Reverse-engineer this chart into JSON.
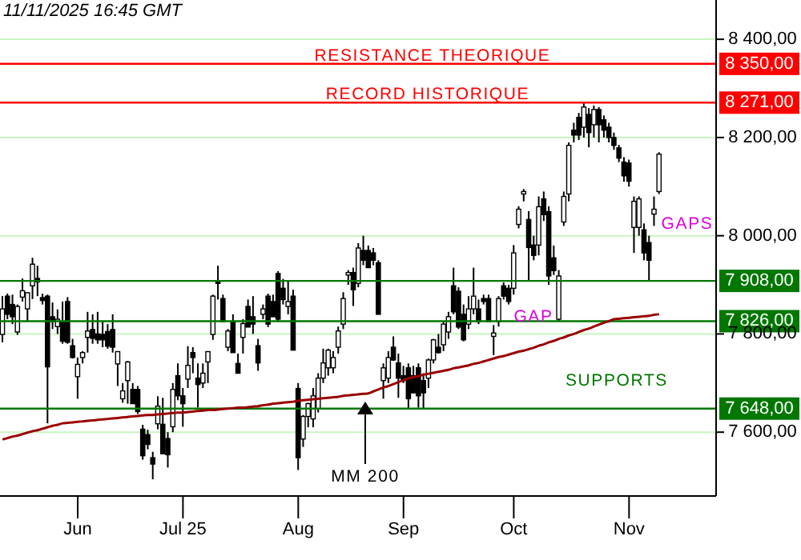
{
  "chart_data": {
    "type": "candlestick",
    "title": "11/11/2025  16:45 GMT",
    "categories": [
      null,
      null,
      null,
      null,
      null,
      null,
      null,
      null,
      null,
      null,
      null,
      null,
      null,
      null,
      null,
      "Jun",
      null,
      null,
      null,
      null,
      null,
      null,
      null,
      null,
      null,
      null,
      null,
      null,
      null,
      null,
      null,
      null,
      null,
      null,
      null,
      null,
      "Jul 25",
      null,
      null,
      null,
      null,
      null,
      null,
      null,
      null,
      null,
      null,
      null,
      null,
      null,
      null,
      null,
      null,
      null,
      null,
      null,
      null,
      null,
      null,
      "Aug",
      null,
      null,
      null,
      null,
      null,
      null,
      null,
      null,
      null,
      null,
      null,
      null,
      null,
      null,
      null,
      null,
      null,
      null,
      null,
      null,
      "Sep",
      null,
      null,
      null,
      null,
      null,
      null,
      null,
      null,
      null,
      null,
      null,
      null,
      null,
      null,
      null,
      null,
      null,
      null,
      null,
      null,
      null,
      "Oct",
      null,
      null,
      null,
      null,
      null,
      null,
      null,
      null,
      null,
      null,
      null,
      null,
      null,
      null,
      null,
      null,
      null,
      null,
      null,
      null,
      null,
      null,
      "Nov",
      null,
      null,
      null,
      null,
      null,
      null
    ],
    "ohlc": [
      [
        7799,
        7877,
        7783,
        7851
      ],
      [
        7877,
        7882,
        7830,
        7840
      ],
      [
        7860,
        7880,
        7820,
        7835
      ],
      [
        7804,
        7860,
        7798,
        7856
      ],
      [
        7875,
        7913,
        7866,
        7888
      ],
      [
        7851,
        7885,
        7825,
        7884
      ],
      [
        7898,
        7955,
        7871,
        7942
      ],
      [
        7913,
        7939,
        7877,
        7906
      ],
      [
        7874,
        7882,
        7860,
        7868
      ],
      [
        7877,
        7880,
        7618,
        7733
      ],
      [
        7835,
        7864,
        7810,
        7825
      ],
      [
        7815,
        7850,
        7800,
        7830
      ],
      [
        7825,
        7866,
        7780,
        7785
      ],
      [
        7866,
        7875,
        7780,
        7783
      ],
      [
        7776,
        7790,
        7750,
        7752
      ],
      [
        7713,
        7752,
        7668,
        7738
      ],
      [
        7752,
        7765,
        7740,
        7762
      ],
      [
        7793,
        7845,
        7762,
        7806
      ],
      [
        7809,
        7840,
        7780,
        7791
      ],
      [
        7800,
        7845,
        7780,
        7788
      ],
      [
        7799,
        7825,
        7773,
        7788
      ],
      [
        7805,
        7820,
        7770,
        7775
      ],
      [
        7809,
        7840,
        7762,
        7773
      ],
      [
        7739,
        7765,
        7694,
        7764
      ],
      [
        7668,
        7700,
        7660,
        7684
      ],
      [
        7705,
        7745,
        7658,
        7743
      ],
      [
        7687,
        7700,
        7658,
        7658
      ],
      [
        7687,
        7694,
        7637,
        7642
      ],
      [
        7606,
        7615,
        7544,
        7552
      ],
      [
        7595,
        7605,
        7565,
        7575
      ],
      [
        7548,
        7560,
        7504,
        7535
      ],
      [
        7617,
        7673,
        7606,
        7653
      ],
      [
        7616,
        7670,
        7556,
        7556
      ],
      [
        7587,
        7600,
        7528,
        7554
      ],
      [
        7611,
        7700,
        7600,
        7687
      ],
      [
        7715,
        7740,
        7665,
        7674
      ],
      [
        7674,
        7690,
        7611,
        7658
      ],
      [
        7708,
        7775,
        7690,
        7736
      ],
      [
        7762,
        7773,
        7720,
        7752
      ],
      [
        7710,
        7740,
        7650,
        7697
      ],
      [
        7700,
        7740,
        7690,
        7720
      ],
      [
        7743,
        7765,
        7700,
        7764
      ],
      [
        7799,
        7880,
        7788,
        7877
      ],
      [
        7908,
        7939,
        7870,
        7903
      ],
      [
        7872,
        7880,
        7825,
        7825
      ],
      [
        7773,
        7810,
        7765,
        7806
      ],
      [
        7825,
        7840,
        7762,
        7762
      ],
      [
        7740,
        7760,
        7720,
        7720
      ],
      [
        7793,
        7830,
        7760,
        7821
      ],
      [
        7856,
        7870,
        7814,
        7814
      ],
      [
        7835,
        7877,
        7800,
        7820
      ],
      [
        7776,
        7790,
        7725,
        7741
      ],
      [
        7840,
        7860,
        7830,
        7851
      ],
      [
        7877,
        7882,
        7814,
        7820
      ],
      [
        7866,
        7880,
        7835,
        7835
      ],
      [
        7923,
        7928,
        7825,
        7830
      ],
      [
        7893,
        7912,
        7860,
        7870
      ],
      [
        7856,
        7908,
        7840,
        7866
      ],
      [
        7877,
        7890,
        7767,
        7767
      ],
      [
        7689,
        7700,
        7523,
        7548
      ],
      [
        7586,
        7635,
        7570,
        7632
      ],
      [
        7632,
        7660,
        7610,
        7658
      ],
      [
        7627,
        7690,
        7610,
        7674
      ],
      [
        7648,
        7720,
        7640,
        7710
      ],
      [
        7710,
        7770,
        7700,
        7741
      ],
      [
        7731,
        7770,
        7715,
        7767
      ],
      [
        7731,
        7765,
        7720,
        7752
      ],
      [
        7773,
        7815,
        7760,
        7806
      ],
      [
        7820,
        7885,
        7810,
        7872
      ],
      [
        7920,
        7930,
        7900,
        7925
      ],
      [
        7925,
        7935,
        7857,
        7890
      ],
      [
        7903,
        7985,
        7895,
        7975
      ],
      [
        7970,
        8000,
        7940,
        7950
      ],
      [
        7970,
        7980,
        7935,
        7935
      ],
      [
        7965,
        7975,
        7940,
        7950
      ],
      [
        7945,
        7950,
        7840,
        7840
      ],
      [
        7705,
        7740,
        7668,
        7731
      ],
      [
        7710,
        7765,
        7700,
        7752
      ],
      [
        7773,
        7795,
        7745,
        7747
      ],
      [
        7741,
        7760,
        7670,
        7710
      ],
      [
        7715,
        7735,
        7700,
        7705
      ],
      [
        7731,
        7740,
        7648,
        7668
      ],
      [
        7715,
        7735,
        7680,
        7680
      ],
      [
        7731,
        7740,
        7650,
        7674
      ],
      [
        7705,
        7720,
        7648,
        7680
      ],
      [
        7710,
        7750,
        7690,
        7747
      ],
      [
        7747,
        7790,
        7740,
        7788
      ],
      [
        7773,
        7800,
        7760,
        7762
      ],
      [
        7778,
        7825,
        7765,
        7820
      ],
      [
        7804,
        7845,
        7790,
        7835
      ],
      [
        7898,
        7935,
        7840,
        7845
      ],
      [
        7887,
        7895,
        7810,
        7814
      ],
      [
        7840,
        7860,
        7785,
        7788
      ],
      [
        7820,
        7877,
        7810,
        7851
      ],
      [
        7851,
        7935,
        7840,
        7877
      ],
      [
        7851,
        7870,
        7820,
        7825
      ],
      [
        7872,
        7880,
        7860,
        7866
      ],
      [
        7872,
        7880,
        7825,
        7825
      ],
      [
        7795,
        7818,
        7757,
        7802
      ],
      [
        7825,
        7877,
        7815,
        7872
      ],
      [
        7898,
        7905,
        7870,
        7877
      ],
      [
        7893,
        7900,
        7860,
        7866
      ],
      [
        7893,
        7981,
        7880,
        7965
      ],
      [
        8023,
        8060,
        8015,
        8054
      ],
      [
        8085,
        8095,
        8070,
        8090
      ],
      [
        8033,
        8050,
        7908,
        7976
      ],
      [
        7981,
        8000,
        7950,
        7960
      ],
      [
        7981,
        8080,
        7960,
        8059
      ],
      [
        8075,
        8090,
        8030,
        8043
      ],
      [
        8049,
        8060,
        7900,
        7918
      ],
      [
        7955,
        7980,
        7920,
        7929
      ],
      [
        7830,
        7930,
        7826,
        7918
      ],
      [
        8028,
        8090,
        8020,
        8080
      ],
      [
        8085,
        8190,
        8070,
        8184
      ],
      [
        8215,
        8230,
        8190,
        8205
      ],
      [
        8241,
        8250,
        8195,
        8205
      ],
      [
        8221,
        8271,
        8200,
        8262
      ],
      [
        8247,
        8260,
        8180,
        8210
      ],
      [
        8226,
        8265,
        8200,
        8257
      ],
      [
        8257,
        8262,
        8190,
        8226
      ],
      [
        8236,
        8245,
        8200,
        8215
      ],
      [
        8221,
        8230,
        8190,
        8200
      ],
      [
        8200,
        8210,
        8175,
        8184
      ],
      [
        8179,
        8185,
        8150,
        8158
      ],
      [
        8150,
        8160,
        8110,
        8122
      ],
      [
        8148,
        8155,
        8100,
        8111
      ],
      [
        8017,
        8080,
        7965,
        8070
      ],
      [
        8017,
        8080,
        8000,
        8075
      ],
      [
        8012,
        8025,
        7950,
        7965
      ],
      [
        7986,
        8000,
        7908,
        7950
      ],
      [
        8044,
        8080,
        8020,
        8054
      ],
      [
        8090,
        8170,
        8085,
        8166
      ]
    ],
    "series": [
      {
        "name": "MM 200",
        "type": "line",
        "color": "#990000",
        "values": [
          7585,
          7588,
          7591,
          7593,
          7596,
          7599,
          7602,
          7604,
          7607,
          7610,
          7613,
          7615,
          7618,
          7619,
          7620,
          7621,
          7622,
          7623,
          7624,
          7625,
          7626,
          7627,
          7628,
          7629,
          7630,
          7631,
          7632,
          7633,
          7634,
          7635,
          7635,
          7636,
          7637,
          7638,
          7639,
          7640,
          7640,
          7641,
          7642,
          7643,
          7644,
          7645,
          7645,
          7646,
          7647,
          7648,
          7649,
          7650,
          7650,
          7651,
          7652,
          7653,
          7655,
          7656,
          7658,
          7659,
          7660,
          7661,
          7662,
          7664,
          7665,
          7666,
          7667,
          7668,
          7669,
          7670,
          7671,
          7672,
          7674,
          7675,
          7676,
          7677,
          7678,
          7679,
          7683,
          7687,
          7691,
          7694,
          7698,
          7702,
          7706,
          7710,
          7712,
          7714,
          7717,
          7719,
          7721,
          7723,
          7725,
          7727,
          7730,
          7732,
          7734,
          7736,
          7739,
          7741,
          7744,
          7747,
          7750,
          7753,
          7755,
          7758,
          7761,
          7764,
          7766,
          7769,
          7772,
          7776,
          7779,
          7783,
          7786,
          7790,
          7793,
          7797,
          7800,
          7804,
          7808,
          7811,
          7815,
          7819,
          7823,
          7826,
          7830,
          7831,
          7832,
          7833,
          7834,
          7835,
          7836,
          7837,
          7839,
          7840
        ]
      }
    ],
    "ylim": [
      7470,
      8480
    ],
    "yticks": [
      {
        "value": 7600,
        "label": "7 600,00"
      },
      {
        "value": 7800,
        "label": "7 800,00"
      },
      {
        "value": 8000,
        "label": "8 000,00"
      },
      {
        "value": 8200,
        "label": "8 200,00"
      },
      {
        "value": 8400,
        "label": "8 400,00"
      }
    ],
    "grid": "y",
    "ref_lines": [
      {
        "axis": "y",
        "value": 8350,
        "label": "8 350,00",
        "color": "#ff0000"
      },
      {
        "axis": "y",
        "value": 8271,
        "label": "8 271,00",
        "color": "#ff0000"
      },
      {
        "axis": "y",
        "value": 7908,
        "label": "7 908,00",
        "color": "#007700"
      },
      {
        "axis": "y",
        "value": 7826,
        "label": "7 826,00",
        "color": "#007700"
      },
      {
        "axis": "y",
        "value": 7648,
        "label": "7 648,00",
        "color": "#007700"
      }
    ],
    "annotations": [
      "RESISTANCE THEORIQUE",
      "RECORD HISTORIQUE",
      "SUPPORTS",
      "GAP",
      "GAPS"
    ]
  }
}
